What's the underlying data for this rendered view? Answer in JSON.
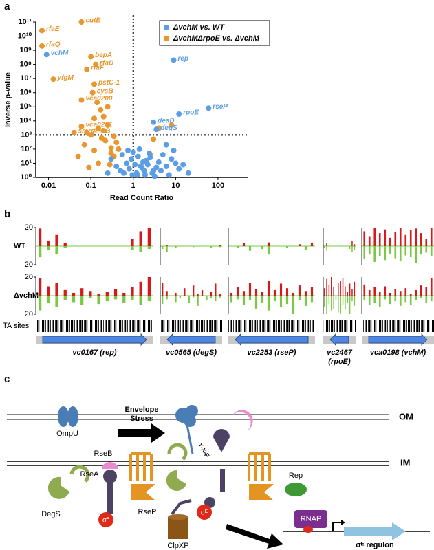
{
  "panels": [
    "a",
    "b",
    "c"
  ],
  "chart_data": [
    {
      "type": "scatter",
      "x_label": "Read Count Ratio",
      "y_label": "Inverse p-value",
      "xscale": "log",
      "yscale": "log",
      "xlim": [
        0.005,
        500
      ],
      "ylim": [
        1,
        100000000000
      ],
      "xticks": [
        0.01,
        0.1,
        1,
        10,
        100
      ],
      "yticks": [
        {
          "value": 1,
          "label": "10⁰"
        },
        {
          "value": 10,
          "label": "10¹"
        },
        {
          "value": 100,
          "label": "10²"
        },
        {
          "value": 1000,
          "label": "10³"
        },
        {
          "value": 10000,
          "label": "10⁴"
        },
        {
          "value": 100000,
          "label": "10⁵"
        },
        {
          "value": 1000000,
          "label": "10⁶"
        },
        {
          "value": 10000000,
          "label": "10⁷"
        },
        {
          "value": 100000000,
          "label": "10⁸"
        },
        {
          "value": 1000000000,
          "label": "10⁹"
        },
        {
          "value": 10000000000,
          "label": "10¹⁰"
        },
        {
          "value": 100000000000,
          "label": "10¹¹"
        }
      ],
      "reference_lines": {
        "x": 1,
        "y": 1000
      },
      "legend": "top right",
      "series": [
        {
          "name": "ΔvchM vs. WT",
          "color": "#5b9ee6",
          "x": [
            0.009,
            9,
            60,
            12,
            3,
            3.5,
            0.5,
            0.7,
            0.9,
            1.1,
            1.3,
            1.6,
            2,
            2.4,
            3,
            4,
            5,
            6,
            8,
            10,
            0.6,
            0.8,
            1,
            1.2,
            1.5,
            1.8,
            2.2,
            2.8,
            3.5,
            4.5,
            0.4,
            0.3,
            0.25,
            1.4,
            1.7,
            2.5,
            6,
            9,
            12,
            15,
            0.55,
            0.75,
            0.95,
            1.25,
            1.9,
            3.2,
            7,
            20
          ],
          "values": [
            500000000,
            200000000,
            80000,
            30000,
            8000,
            2500,
            3,
            10,
            20,
            8,
            30,
            5,
            15,
            50,
            3,
            12,
            40,
            6,
            20,
            10,
            2,
            4,
            60,
            2,
            6,
            3,
            8,
            2,
            5,
            3,
            6,
            20,
            2,
            100,
            12,
            25,
            200,
            80,
            4,
            8,
            40,
            80,
            1.5,
            1.5,
            1.5,
            1.2,
            1.5,
            2
          ],
          "point_labels": [
            "vchM",
            "rep",
            "rseP",
            "rpoE",
            "deaD",
            "degS",
            null,
            null,
            null,
            null,
            null,
            null,
            null,
            null,
            null,
            null,
            null,
            null,
            null,
            null,
            null,
            null,
            null,
            null,
            null,
            null,
            null,
            null,
            null,
            null,
            null,
            null,
            null,
            null,
            null,
            null,
            null,
            null,
            null,
            null,
            null,
            null,
            null,
            null,
            null,
            null,
            null,
            null
          ]
        },
        {
          "name": "ΔvchMΔrpoE vs. ΔvchM",
          "color": "#e8962e",
          "x": [
            0.007,
            0.06,
            0.007,
            0.1,
            0.13,
            0.08,
            0.013,
            0.12,
            0.11,
            0.06,
            0.04,
            0.06,
            0.08,
            0.05,
            0.07,
            0.09,
            0.12,
            0.15,
            0.18,
            0.2,
            0.25,
            0.3,
            0.35,
            0.4,
            0.15,
            0.2,
            0.25,
            0.3,
            0.12,
            0.1,
            0.35,
            0.45,
            0.22,
            0.28,
            2.5,
            3,
            4,
            8,
            0.17,
            0.14
          ],
          "values": [
            25000000000,
            100000000000,
            2000000000,
            350000000,
            100000000,
            45000000,
            9000000,
            4000000,
            1000000,
            300000,
            1500,
            4000,
            1500,
            30,
            200,
            5,
            80,
            3000,
            600,
            20000,
            100000,
            50,
            800,
            300,
            10,
            2000,
            5000,
            120,
            15000,
            1000,
            30,
            100,
            400,
            8,
            40,
            500,
            3000,
            5000,
            60000,
            200000
          ],
          "point_labels": [
            "rfaE",
            "cutE",
            "rfaQ",
            "bepA",
            "rfaD",
            "rfaF",
            "yfgM",
            "pstC-1",
            "cysB",
            "vca0200",
            "smpA",
            "vca0201",
            "gmhB",
            null,
            null,
            null,
            null,
            null,
            null,
            null,
            null,
            null,
            null,
            null,
            null,
            null,
            null,
            null,
            null,
            null,
            null,
            null,
            null,
            null,
            null,
            null,
            null,
            null,
            null,
            null
          ]
        }
      ]
    },
    {
      "type": "insertion-track",
      "ylim": [
        -20,
        20
      ],
      "yticks": [
        20,
        {
          "value": -20,
          "label": "20"
        }
      ],
      "up_color": "#d7191c",
      "down_color": "#7ac943",
      "ta_label": "TA sites",
      "rows": [
        {
          "name": "WT",
          "windows": [
            {
              "up": [
                19,
                6,
                12,
                3,
                0,
                0,
                0,
                0,
                0,
                0,
                0,
                8,
                16,
                20
              ],
              "down": [
                -12,
                -4,
                -9,
                -2,
                0,
                0,
                0,
                0,
                0,
                0,
                0,
                -4,
                -6,
                -3
              ]
            },
            {
              "up": [
                0,
                1,
                0,
                0,
                0,
                0,
                0,
                0,
                0,
                0,
                0,
                0,
                0,
                1
              ],
              "down": [
                -3,
                -6,
                0,
                -2,
                0,
                0,
                0,
                -1,
                0,
                0,
                0,
                -2,
                0,
                -1
              ]
            },
            {
              "up": [
                0,
                0,
                3,
                0,
                0,
                0,
                4,
                0,
                0,
                0,
                0,
                2,
                0,
                3
              ],
              "down": [
                0,
                -2,
                0,
                -5,
                0,
                -3,
                -9,
                0,
                0,
                -2,
                0,
                0,
                -4,
                0
              ]
            },
            {
              "up": [
                0,
                3,
                0,
                0,
                0,
                0,
                0,
                0,
                0,
                0,
                0,
                0,
                6,
                2
              ],
              "down": [
                -2,
                -5,
                0,
                0,
                0,
                0,
                0,
                0,
                0,
                0,
                0,
                -3,
                -6,
                -4
              ]
            },
            {
              "up": [
                16,
                10,
                20,
                14,
                18,
                9,
                15,
                20,
                12,
                17,
                19,
                14,
                8,
                20
              ],
              "down": [
                -14,
                -9,
                -17,
                -11,
                -15,
                -8,
                -13,
                -16,
                -10,
                -12,
                -18,
                -9,
                -7,
                -11
              ]
            }
          ]
        },
        {
          "name": "ΔvchM",
          "windows": [
            {
              "up": [
                19,
                10,
                14,
                6,
                3,
                8,
                5,
                2,
                4,
                7,
                3,
                9,
                15,
                20
              ],
              "down": [
                -16,
                -8,
                -12,
                -5,
                -7,
                -10,
                -3,
                -9,
                -6,
                -4,
                -8,
                -5,
                -10,
                -6
              ]
            },
            {
              "up": [
                14,
                5,
                0,
                3,
                0,
                8,
                0,
                11,
                2,
                6,
                0,
                4,
                13,
                2
              ],
              "down": [
                -9,
                -4,
                0,
                -7,
                -3,
                0,
                -8,
                -2,
                -11,
                0,
                -5,
                -3,
                -6,
                -2
              ]
            },
            {
              "up": [
                3,
                9,
                5,
                14,
                7,
                4,
                16,
                6,
                13,
                8,
                3,
                11,
                5,
                9
              ],
              "down": [
                -7,
                -4,
                -10,
                -5,
                -14,
                -8,
                -16,
                -6,
                -12,
                -9,
                -20,
                -5,
                -11,
                -7
              ]
            },
            {
              "up": [
                8,
                18,
                12,
                20,
                9,
                0,
                14,
                16,
                19,
                10,
                4,
                13,
                7,
                15
              ],
              "down": [
                -12,
                -20,
                -9,
                -16,
                -14,
                -5,
                -18,
                -20,
                -10,
                -15,
                -8,
                -20,
                -6,
                -11
              ]
            },
            {
              "up": [
                12,
                6,
                9,
                4,
                10,
                3,
                7,
                5,
                8,
                2,
                6,
                11,
                9,
                19
              ],
              "down": [
                -5,
                -10,
                -8,
                -12,
                -4,
                -9,
                -6,
                -11,
                -7,
                -10,
                -5,
                -3,
                -8,
                -6
              ]
            }
          ]
        }
      ],
      "genes": [
        {
          "lines": [
            "vc0167 (rep)"
          ],
          "direction": "right"
        },
        {
          "lines": [
            "vc0565 (degS)"
          ],
          "direction": "left"
        },
        {
          "lines": [
            "vc2253 (rseP)"
          ],
          "direction": "left"
        },
        {
          "lines": [
            "vc2467",
            "(rpoE)"
          ],
          "direction": "left"
        },
        {
          "lines": [
            "vca0198 (vchM)"
          ],
          "direction": "right"
        }
      ]
    }
  ],
  "diagram": {
    "om": "OM",
    "im": "IM",
    "ompu": "OmpU",
    "rseb": "RseB",
    "rsea": "RseA",
    "degs": "DegS",
    "sigma_bound": "σᴱ",
    "rsep": "RseP",
    "stress_1": "Envelope",
    "stress_2": "Stress",
    "yxf": "Y-X-F",
    "sigma_free": "σᴱ",
    "rep": "Rep",
    "clpxp": "ClpXP",
    "rnap": "RNAP",
    "regulon": "σᴱ regulon"
  }
}
